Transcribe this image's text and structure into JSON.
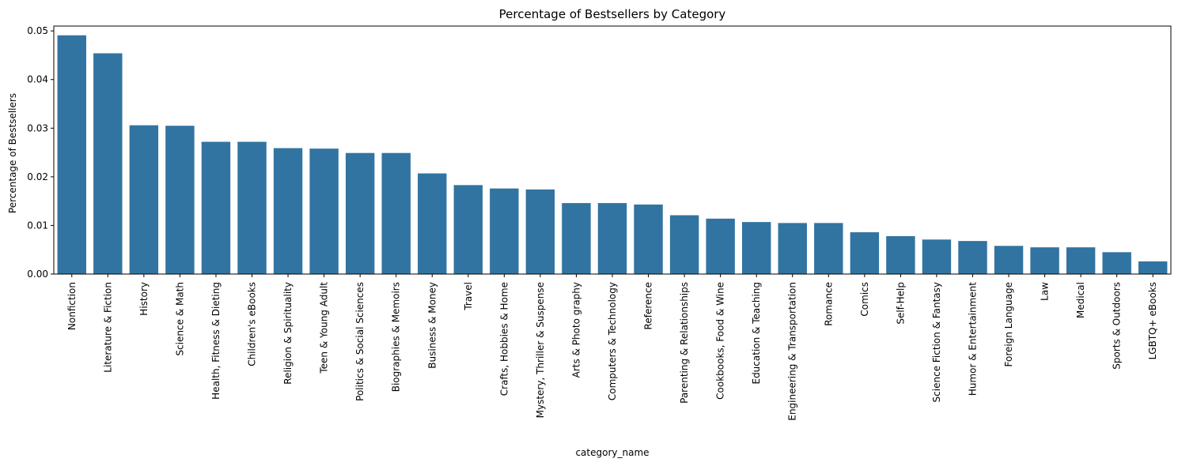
{
  "chart_data": {
    "type": "bar",
    "title": "Percentage of Bestsellers by Category",
    "xlabel": "category_name",
    "ylabel": "Percentage of Bestsellers",
    "ylim": [
      0,
      0.051
    ],
    "yticks": [
      "0.00",
      "0.01",
      "0.02",
      "0.03",
      "0.04",
      "0.05"
    ],
    "grid": false,
    "bar_color": "#3274a1",
    "categories": [
      "Nonfiction",
      "Literature & Fiction",
      "History",
      "Science & Math",
      "Health, Fitness & Dieting",
      "Children's eBooks",
      "Religion & Spirituality",
      "Teen & Young Adult",
      "Politics & Social Sciences",
      "Biographies & Memoirs",
      "Business & Money",
      "Travel",
      "Crafts, Hobbies & Home",
      "Mystery, Thriller & Suspense",
      "Arts & Photo graphy",
      "Computers & Technology",
      "Reference",
      "Parenting & Relationships",
      "Cookbooks, Food & Wine",
      "Education & Teaching",
      "Engineering & Transportation",
      "Romance",
      "Comics",
      "Self-Help",
      "Science Fiction & Fantasy",
      "Humor & Entertainment",
      "Foreign Language",
      "Law",
      "Medical",
      "Sports & Outdoors",
      "LGBTQ+ eBooks"
    ],
    "values": [
      0.0491,
      0.0454,
      0.0306,
      0.0305,
      0.0272,
      0.0272,
      0.0259,
      0.0258,
      0.0249,
      0.0249,
      0.0207,
      0.0183,
      0.0176,
      0.0174,
      0.0146,
      0.0146,
      0.0143,
      0.0121,
      0.0114,
      0.0107,
      0.0105,
      0.0105,
      0.0086,
      0.0078,
      0.0071,
      0.0068,
      0.0058,
      0.0055,
      0.0055,
      0.0045,
      0.0026
    ]
  }
}
